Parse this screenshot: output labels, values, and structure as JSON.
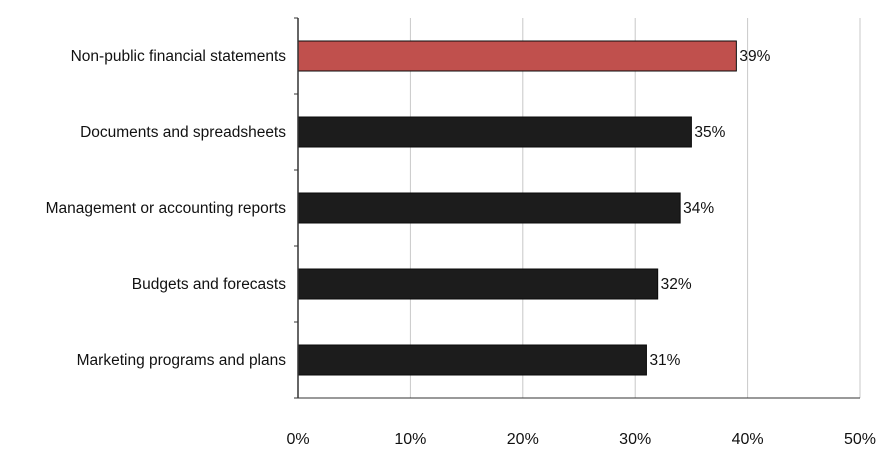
{
  "chart_data": {
    "type": "bar",
    "orientation": "horizontal",
    "categories": [
      "Non-public financial statements",
      "Documents and spreadsheets",
      "Management or accounting reports",
      "Budgets and forecasts",
      "Marketing programs and plans"
    ],
    "values": [
      39,
      35,
      34,
      32,
      31
    ],
    "value_labels": [
      "39%",
      "35%",
      "34%",
      "32%",
      "31%"
    ],
    "xlim": [
      0,
      50
    ],
    "xticks": [
      0,
      10,
      20,
      30,
      40,
      50
    ],
    "xtick_labels": [
      "0%",
      "10%",
      "20%",
      "30%",
      "40%",
      "50%"
    ],
    "grid": "vertical",
    "highlight_index": 0,
    "colors": {
      "highlight": "#c0504d",
      "bar": "#1c1c1c",
      "grid": "#c8c8c8",
      "axis": "#333333"
    },
    "title": "",
    "xlabel": "",
    "ylabel": ""
  }
}
